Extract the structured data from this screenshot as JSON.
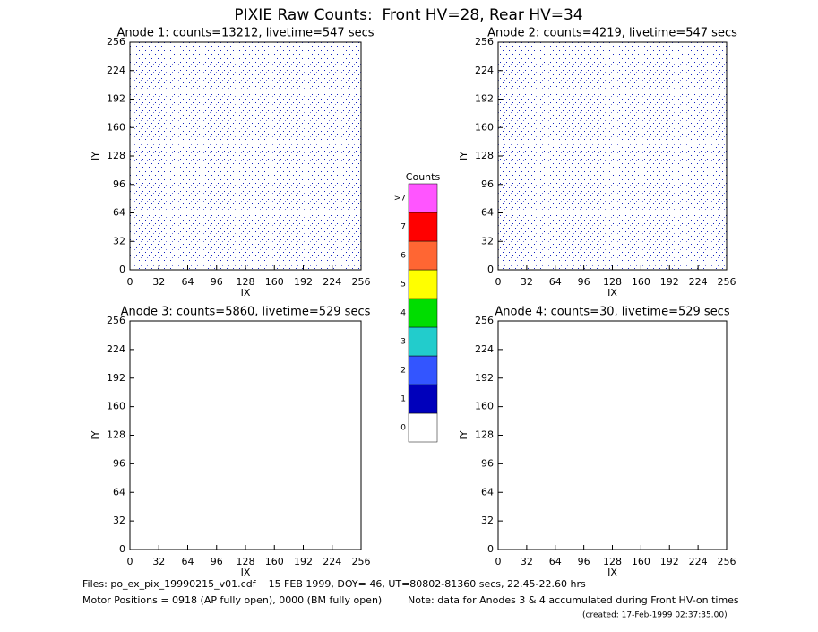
{
  "title": "PIXIE Raw Counts:  Front HV=28, Rear HV=34",
  "chart_data": [
    {
      "type": "heatmap",
      "title": "Anode 1: counts=13212, livetime=547 secs",
      "xlabel": "IX",
      "ylabel": "IY",
      "xlim": [
        0,
        256
      ],
      "ylim": [
        0,
        256
      ],
      "xticks": [
        0,
        32,
        64,
        96,
        128,
        160,
        192,
        224,
        256
      ],
      "yticks": [
        0,
        32,
        64,
        96,
        128,
        160,
        192,
        224,
        256
      ]
    },
    {
      "type": "heatmap",
      "title": "Anode 2: counts=4219, livetime=547 secs",
      "xlabel": "IX",
      "ylabel": "IY",
      "xlim": [
        0,
        256
      ],
      "ylim": [
        0,
        256
      ],
      "xticks": [
        0,
        32,
        64,
        96,
        128,
        160,
        192,
        224,
        256
      ],
      "yticks": [
        0,
        32,
        64,
        96,
        128,
        160,
        192,
        224,
        256
      ]
    },
    {
      "type": "heatmap",
      "title": "Anode 3: counts=5860, livetime=529 secs",
      "xlabel": "IX",
      "ylabel": "IY",
      "xlim": [
        0,
        256
      ],
      "ylim": [
        0,
        256
      ],
      "xticks": [
        0,
        32,
        64,
        96,
        128,
        160,
        192,
        224,
        256
      ],
      "yticks": [
        0,
        32,
        64,
        96,
        128,
        160,
        192,
        224,
        256
      ]
    },
    {
      "type": "heatmap",
      "title": "Anode 4: counts=30, livetime=529 secs",
      "xlabel": "IX",
      "ylabel": "IY",
      "xlim": [
        0,
        256
      ],
      "ylim": [
        0,
        256
      ],
      "xticks": [
        0,
        32,
        64,
        96,
        128,
        160,
        192,
        224,
        256
      ],
      "yticks": [
        0,
        32,
        64,
        96,
        128,
        160,
        192,
        224,
        256
      ]
    }
  ],
  "colorbar": {
    "title": "Counts",
    "levels": [
      {
        "label": "0",
        "color": "#ffffff"
      },
      {
        "label": "1",
        "color": "#0000bb"
      },
      {
        "label": "2",
        "color": "#3355ff"
      },
      {
        "label": "3",
        "color": "#22cccc"
      },
      {
        "label": "4",
        "color": "#00dd00"
      },
      {
        "label": "5",
        "color": "#ffff00"
      },
      {
        "label": "6",
        "color": "#ff6633"
      },
      {
        "label": "7",
        "color": "#ff0000"
      },
      {
        "label": ">7",
        "color": "#ff55ff"
      }
    ]
  },
  "footer": {
    "files": "Files: po_ex_pix_19990215_v01.cdf    15 FEB 1999, DOY= 46, UT=80802-81360 secs, 22.45-22.60 hrs",
    "motor": "Motor Positions = 0918 (AP fully open), 0000 (BM fully open)",
    "note": "Note: data for Anodes 3 & 4 accumulated during Front HV-on times",
    "created": "(created: 17-Feb-1999 02:37:35.00)"
  }
}
